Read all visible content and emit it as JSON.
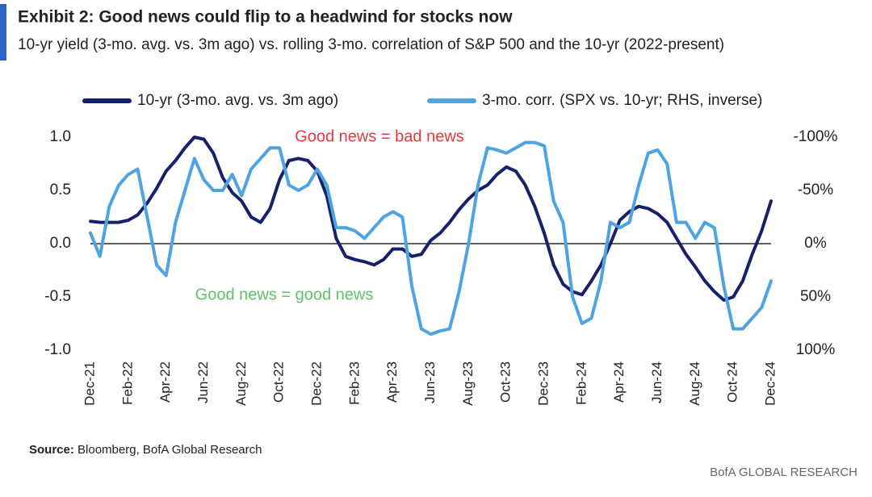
{
  "chart_data": {
    "type": "line",
    "title": "Exhibit 2: Good news could flip to a headwind for stocks now",
    "subtitle": "10-yr yield (3-mo. avg. vs. 3m ago) vs. rolling 3-mo. correlation of S&P 500 and the 10-yr (2022-present)",
    "annotations": [
      "Good news = bad news",
      "Good news = good news"
    ],
    "source_label": "Source:",
    "source": "Bloomberg, BofA Global Research",
    "brand": "BofA GLOBAL RESEARCH",
    "categories": [
      "Dec-21",
      null,
      null,
      null,
      "Feb-22",
      null,
      null,
      null,
      "Apr-22",
      null,
      null,
      null,
      "Jun-22",
      null,
      null,
      null,
      "Aug-22",
      null,
      null,
      null,
      "Oct-22",
      null,
      null,
      null,
      "Dec-22",
      null,
      null,
      null,
      "Feb-23",
      null,
      null,
      null,
      "Apr-23",
      null,
      null,
      null,
      "Jun-23",
      null,
      null,
      null,
      "Aug-23",
      null,
      null,
      null,
      "Oct-23",
      null,
      null,
      null,
      "Dec-23",
      null,
      null,
      null,
      "Feb-24",
      null,
      null,
      null,
      "Apr-24",
      null,
      null,
      null,
      "Jun-24",
      null,
      null,
      null,
      "Aug-24",
      null,
      null,
      null,
      "Oct-24",
      null,
      null,
      null,
      "Dec-24"
    ],
    "series": [
      {
        "name": "10-yr (3-mo. avg. vs. 3m ago)",
        "color": "#15226b",
        "values": [
          0.21,
          0.2,
          0.2,
          0.2,
          0.22,
          0.27,
          0.38,
          0.52,
          0.68,
          0.78,
          0.9,
          1.0,
          0.98,
          0.85,
          0.62,
          0.48,
          0.4,
          0.25,
          0.2,
          0.33,
          0.6,
          0.78,
          0.8,
          0.78,
          0.68,
          0.45,
          0.05,
          -0.12,
          -0.15,
          -0.17,
          -0.2,
          -0.15,
          -0.05,
          -0.05,
          -0.12,
          -0.1,
          0.03,
          0.1,
          0.2,
          0.32,
          0.42,
          0.5,
          0.55,
          0.65,
          0.72,
          0.68,
          0.55,
          0.35,
          0.1,
          -0.2,
          -0.38,
          -0.45,
          -0.48,
          -0.35,
          -0.2,
          0.0,
          0.22,
          0.3,
          0.35,
          0.33,
          0.28,
          0.2,
          0.05,
          -0.1,
          -0.22,
          -0.35,
          -0.45,
          -0.53,
          -0.5,
          -0.35,
          -0.1,
          0.12,
          0.4
        ]
      },
      {
        "name": "3-mo. corr. (SPX vs. 10-yr; RHS, inverse)",
        "color": "#4ea3e0",
        "axis": "y2",
        "values": [
          -10,
          12,
          -35,
          -55,
          -65,
          -70,
          -25,
          20,
          30,
          -20,
          -50,
          -80,
          -60,
          -50,
          -50,
          -65,
          -45,
          -70,
          -80,
          -90,
          -90,
          -55,
          -50,
          -55,
          -70,
          -55,
          -15,
          -15,
          -12,
          -5,
          -15,
          -25,
          -30,
          -25,
          40,
          80,
          85,
          82,
          80,
          45,
          0,
          -55,
          -90,
          -88,
          -85,
          -90,
          -95,
          -95,
          -92,
          -40,
          -20,
          50,
          75,
          70,
          35,
          -20,
          -15,
          -20,
          -55,
          -85,
          -88,
          -75,
          -20,
          -20,
          -5,
          -20,
          -15,
          40,
          80,
          80,
          70,
          60,
          35
        ]
      }
    ],
    "ylim": [
      -1,
      1
    ],
    "yticks": [
      {
        "value": 1,
        "label": "1.0"
      },
      0.5,
      {
        "value": 0,
        "label": "0.0"
      },
      -0.5,
      {
        "value": -1,
        "label": "-1.0"
      }
    ],
    "y2lim": [
      -100,
      100
    ],
    "y2_inverted": true,
    "y2ticks": [
      {
        "value": -100,
        "label": "-100%"
      },
      {
        "value": -50,
        "label": "-50%"
      },
      {
        "value": 0,
        "label": "0%"
      },
      {
        "value": 50,
        "label": "50%"
      },
      {
        "value": 100,
        "label": "100%"
      }
    ],
    "grid": false
  }
}
